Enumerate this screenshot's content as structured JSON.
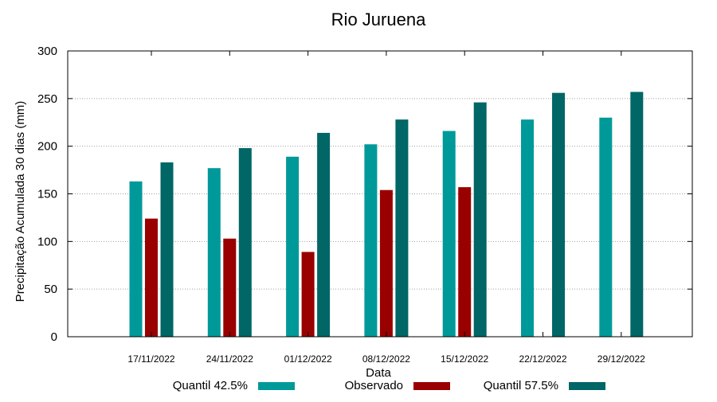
{
  "chart_data": {
    "type": "bar",
    "title": "Rio Juruena",
    "xlabel": "Data",
    "ylabel": "Precipitação Acumulada 30 dias (mm)",
    "ylim": [
      0,
      300
    ],
    "yticks": [
      0,
      50,
      100,
      150,
      200,
      250,
      300
    ],
    "grid": true,
    "legend_position": "bottom",
    "categories": [
      "17/11/2022",
      "24/11/2022",
      "01/12/2022",
      "08/12/2022",
      "15/12/2022",
      "22/12/2022",
      "29/12/2022"
    ],
    "series": [
      {
        "name": "Quantil 42.5%",
        "color": "#009999",
        "values": [
          163,
          177,
          189,
          202,
          216,
          228,
          230
        ]
      },
      {
        "name": "Observado",
        "color": "#990000",
        "values": [
          124,
          103,
          89,
          154,
          157,
          null,
          null
        ]
      },
      {
        "name": "Quantil 57.5%",
        "color": "#006666",
        "values": [
          183,
          198,
          214,
          228,
          246,
          256,
          257
        ]
      }
    ]
  }
}
